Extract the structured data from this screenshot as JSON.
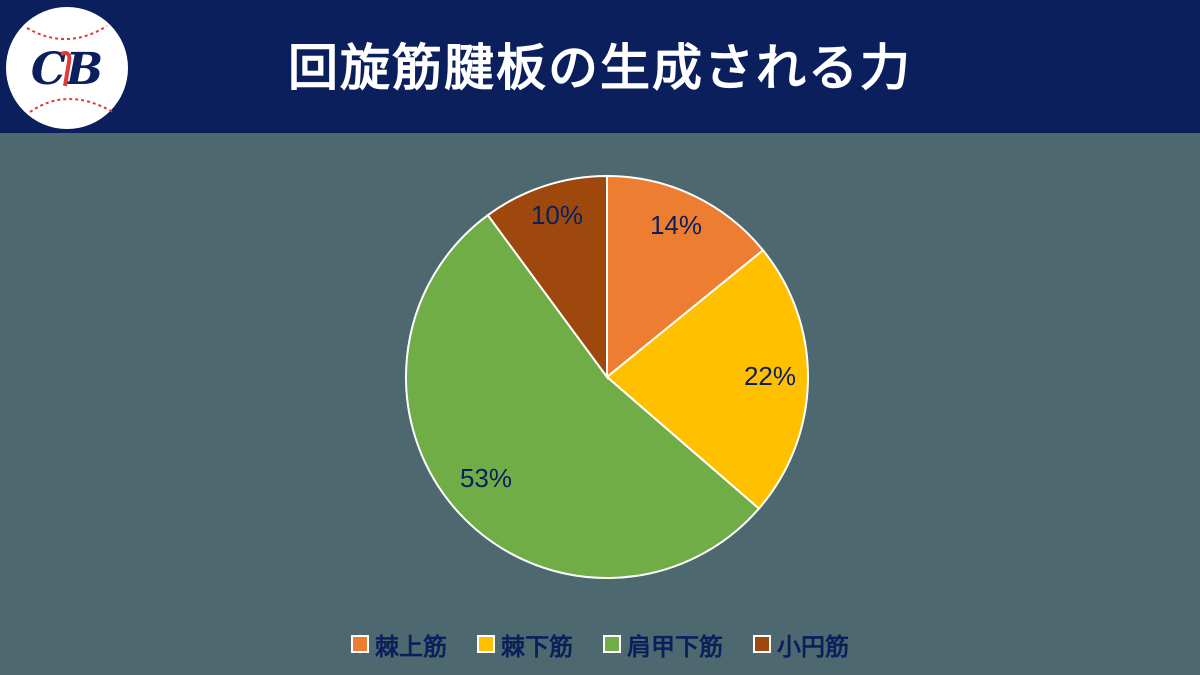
{
  "header": {
    "title": "回旋筋腱板の生成される力",
    "logo_text": "CB",
    "logo_icon": "baseball-logo-icon"
  },
  "colors": {
    "header_bg": "#0b1f5c",
    "page_bg": "#4e6870",
    "label_text": "#0b1f5c"
  },
  "chart_data": {
    "type": "pie",
    "title": "回旋筋腱板の生成される力",
    "categories": [
      "棘上筋",
      "棘下筋",
      "肩甲下筋",
      "小円筋"
    ],
    "values": [
      14,
      22,
      53,
      10
    ],
    "labels": [
      "14%",
      "22%",
      "53%",
      "10%"
    ],
    "colors": [
      "#ed7d31",
      "#ffc000",
      "#70ad47",
      "#9e480e"
    ],
    "start_angle_deg": 0,
    "direction": "clockwise",
    "legend_position": "bottom"
  },
  "legend": {
    "items": [
      {
        "label": "棘上筋",
        "color": "#ed7d31"
      },
      {
        "label": "棘下筋",
        "color": "#ffc000"
      },
      {
        "label": "肩甲下筋",
        "color": "#70ad47"
      },
      {
        "label": "小円筋",
        "color": "#9e480e"
      }
    ]
  }
}
